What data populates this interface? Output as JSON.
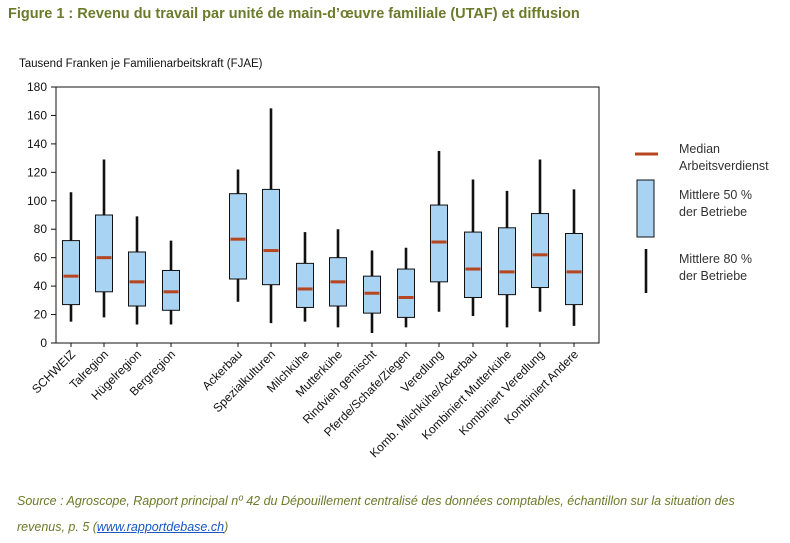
{
  "figure_title": "Figure 1 : Revenu du travail par unité de main-d’œuvre familiale (UTAF) et diffusion",
  "chart_data": {
    "type": "boxplot",
    "ylabel": "Tausend Franken je Familienarbeitskraft (FJAE)",
    "ylim": [
      0,
      180
    ],
    "yticks": [
      0,
      20,
      40,
      60,
      80,
      100,
      120,
      140,
      160,
      180
    ],
    "grid": false,
    "legend_position": "right",
    "colors": {
      "box_fill": "#a9d3f2",
      "median": "#b5461f",
      "whisker": "#111111"
    },
    "categories": [
      "SCHWEIZ",
      "Talregion",
      "Hügelregion",
      "Bergregion",
      "Ackerbau",
      "Spezialkulturen",
      "Milchkühe",
      "Mutterkühe",
      "Rindvieh gemischt",
      "Pferde/Schafe/Ziegen",
      "Veredlung",
      "Komb. Milchkühe/Ackerbau",
      "Kombiniert Mutterkühe",
      "Kombiniert Veredlung",
      "Kombiniert Andere"
    ],
    "groups": [
      4,
      11
    ],
    "series": [
      {
        "category": "SCHWEIZ",
        "p10": 15,
        "q1": 27,
        "median": 47,
        "q3": 72,
        "p90": 106
      },
      {
        "category": "Talregion",
        "p10": 18,
        "q1": 36,
        "median": 60,
        "q3": 90,
        "p90": 129
      },
      {
        "category": "Hügelregion",
        "p10": 13,
        "q1": 26,
        "median": 43,
        "q3": 64,
        "p90": 89
      },
      {
        "category": "Bergregion",
        "p10": 13,
        "q1": 23,
        "median": 36,
        "q3": 51,
        "p90": 72
      },
      {
        "category": "Ackerbau",
        "p10": 29,
        "q1": 45,
        "median": 73,
        "q3": 105,
        "p90": 122
      },
      {
        "category": "Spezialkulturen",
        "p10": 14,
        "q1": 41,
        "median": 65,
        "q3": 108,
        "p90": 165
      },
      {
        "category": "Milchkühe",
        "p10": 15,
        "q1": 25,
        "median": 38,
        "q3": 56,
        "p90": 78
      },
      {
        "category": "Mutterkühe",
        "p10": 11,
        "q1": 26,
        "median": 43,
        "q3": 60,
        "p90": 80
      },
      {
        "category": "Rindvieh gemischt",
        "p10": 7,
        "q1": 21,
        "median": 35,
        "q3": 47,
        "p90": 65
      },
      {
        "category": "Pferde/Schafe/Ziegen",
        "p10": 11,
        "q1": 18,
        "median": 32,
        "q3": 52,
        "p90": 67
      },
      {
        "category": "Veredlung",
        "p10": 22,
        "q1": 43,
        "median": 71,
        "q3": 97,
        "p90": 135
      },
      {
        "category": "Komb. Milchkühe/Ackerbau",
        "p10": 19,
        "q1": 32,
        "median": 52,
        "q3": 78,
        "p90": 115
      },
      {
        "category": "Kombiniert Mutterkühe",
        "p10": 11,
        "q1": 34,
        "median": 50,
        "q3": 81,
        "p90": 107
      },
      {
        "category": "Kombiniert Veredlung",
        "p10": 22,
        "q1": 39,
        "median": 62,
        "q3": 91,
        "p90": 129
      },
      {
        "category": "Kombiniert Andere",
        "p10": 12,
        "q1": 27,
        "median": 50,
        "q3": 77,
        "p90": 108
      }
    ],
    "legend": [
      {
        "kind": "median",
        "label_lines": [
          "Median",
          "Arbeitsverdienst"
        ]
      },
      {
        "kind": "box",
        "label_lines": [
          "Mittlere 50 %",
          "der Betriebe"
        ]
      },
      {
        "kind": "whisker",
        "label_lines": [
          "Mittlere 80 %",
          "der Betriebe"
        ]
      }
    ]
  },
  "source": {
    "prefix": "Source : Agroscope, Rapport principal nº 42 du Dépouillement centralisé des données comptables, échantillon sur la situation des revenus, p. 5 (",
    "link_text": "www.rapportdebase.ch",
    "suffix": ")"
  }
}
